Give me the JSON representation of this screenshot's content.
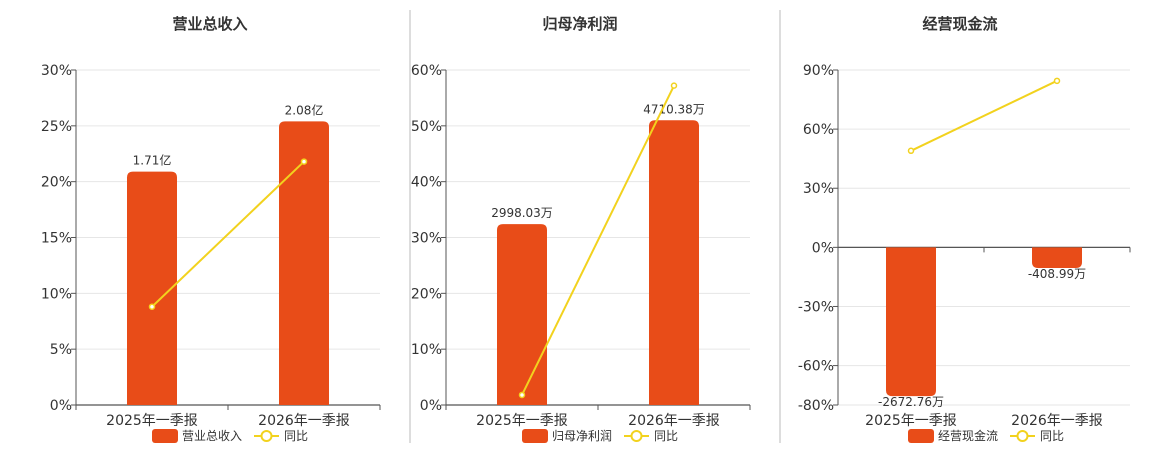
{
  "colors": {
    "bar": "#E84C18",
    "line": "#F2D21E",
    "grid": "#E6E6E6",
    "axis": "#555555",
    "divider": "#BBBBBB"
  },
  "chart_data": [
    {
      "type": "bar",
      "title": "营业总收入",
      "categories": [
        "2025年一季报",
        "2026年一季报"
      ],
      "series": [
        {
          "name": "营业总收入",
          "type": "bar",
          "values": [
            20.9,
            25.4
          ],
          "labels": [
            "1.71亿",
            "2.08亿"
          ]
        },
        {
          "name": "同比",
          "type": "line",
          "values": [
            8.8,
            21.8
          ]
        }
      ],
      "ylim": [
        0,
        30
      ],
      "yticks": [
        0,
        5,
        10,
        15,
        20,
        25,
        30
      ],
      "ytick_labels": [
        "0%",
        "5%",
        "10%",
        "15%",
        "20%",
        "25%",
        "30%"
      ],
      "legend": [
        "营业总收入",
        "同比"
      ],
      "legend_position": "bottom",
      "grid": true
    },
    {
      "type": "bar",
      "title": "归母净利润",
      "categories": [
        "2025年一季报",
        "2026年一季报"
      ],
      "series": [
        {
          "name": "归母净利润",
          "type": "bar",
          "values": [
            32.4,
            51.0
          ],
          "labels": [
            "2998.03万",
            "4710.38万"
          ]
        },
        {
          "name": "同比",
          "type": "line",
          "values": [
            1.8,
            57.2
          ]
        }
      ],
      "ylim": [
        0,
        60
      ],
      "yticks": [
        0,
        10,
        20,
        30,
        40,
        50,
        60
      ],
      "ytick_labels": [
        "0%",
        "10%",
        "20%",
        "30%",
        "40%",
        "50%",
        "60%"
      ],
      "legend": [
        "归母净利润",
        "同比"
      ],
      "legend_position": "bottom",
      "grid": true
    },
    {
      "type": "bar",
      "title": "经营现金流",
      "categories": [
        "2025年一季报",
        "2026年一季报"
      ],
      "series": [
        {
          "name": "经营现金流",
          "type": "bar",
          "values": [
            -75.5,
            -10.5
          ],
          "labels": [
            "-2672.76万",
            "-408.99万"
          ]
        },
        {
          "name": "同比",
          "type": "line",
          "values": [
            49.0,
            84.5
          ]
        }
      ],
      "ylim": [
        -80,
        90
      ],
      "yticks": [
        -80,
        -60,
        -30,
        0,
        30,
        60,
        90
      ],
      "ytick_labels": [
        "-80%",
        "-60%",
        "-30%",
        "0%",
        "30%",
        "60%",
        "90%"
      ],
      "legend": [
        "经营现金流",
        "同比"
      ],
      "legend_position": "bottom",
      "grid": true
    }
  ]
}
